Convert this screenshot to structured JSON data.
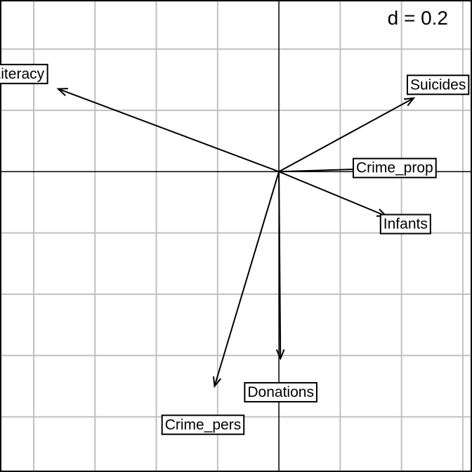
{
  "chart_data": {
    "type": "correlation-circle",
    "scale_label": "d = 0.2",
    "grid_step": 0.2,
    "xlim": [
      -0.91,
      0.63
    ],
    "ylim": [
      -0.98,
      0.56
    ],
    "grid": true,
    "variables": [
      {
        "name": "Literacy",
        "x": -0.72,
        "y": 0.27
      },
      {
        "name": "Suicides",
        "x": 0.44,
        "y": 0.24
      },
      {
        "name": "Crime_prop",
        "x": 0.32,
        "y": 0.01
      },
      {
        "name": "Infants",
        "x": 0.35,
        "y": -0.145
      },
      {
        "name": "Donations",
        "x": 0.005,
        "y": -0.61
      },
      {
        "name": "Crime_pers",
        "x": -0.21,
        "y": -0.7
      }
    ]
  }
}
